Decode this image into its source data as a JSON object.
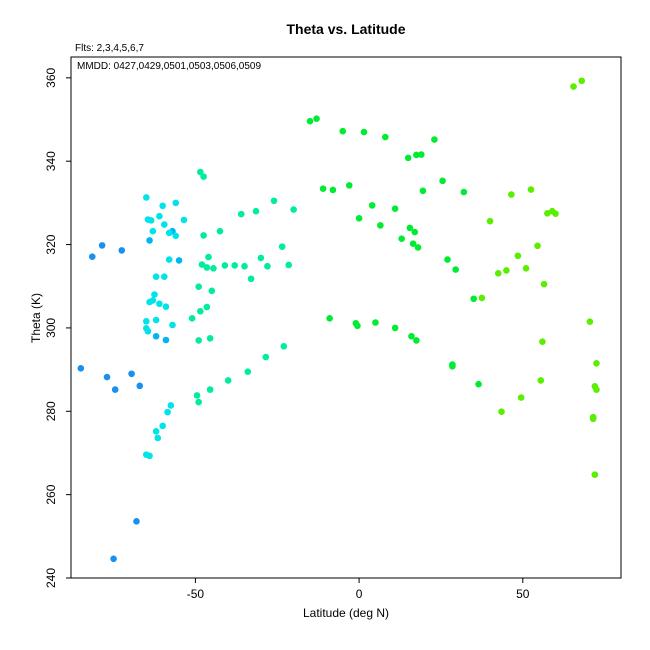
{
  "chart_data": {
    "type": "scatter",
    "title": "Theta vs. Latitude",
    "flts_note": "Flts: 2,3,4,5,6,7",
    "mmdd_note": "MMDD: 0427,0429,0501,0503,0506,0509",
    "xlabel": "Latitude (deg N)",
    "ylabel": "Theta (K)",
    "xlim": [
      -88,
      80
    ],
    "ylim": [
      240,
      365
    ],
    "xticks": [
      -50,
      0,
      50
    ],
    "yticks": [
      240,
      260,
      280,
      300,
      320,
      340,
      360
    ],
    "grid": false,
    "colors": {
      "flt2": "#1a90ee",
      "flt3": "#00b6f2",
      "flt4": "#00e3e8",
      "flt5": "#00ed9a",
      "flt6": "#00ec33",
      "flt7": "#5aee00"
    },
    "series": [
      {
        "group": "flt2",
        "points": [
          [
            -81.5,
            317.1
          ],
          [
            -78.5,
            319.8
          ],
          [
            -72.5,
            318.6
          ],
          [
            -85,
            290.3
          ],
          [
            -77,
            288.2
          ],
          [
            -74.5,
            285.2
          ],
          [
            -69.5,
            289.0
          ],
          [
            -67,
            286.1
          ],
          [
            -68,
            253.6
          ],
          [
            -75,
            244.6
          ]
        ]
      },
      {
        "group": "flt3",
        "points": [
          [
            -64,
            321.0
          ],
          [
            -57,
            323.2
          ],
          [
            -55,
            316.2
          ],
          [
            -62,
            298.0
          ],
          [
            -59,
            297.1
          ]
        ]
      },
      {
        "group": "flt4",
        "points": [
          [
            -65,
            331.3
          ],
          [
            -60,
            329.3
          ],
          [
            -56,
            330.0
          ],
          [
            -64.5,
            326.0
          ],
          [
            -63.5,
            325.8
          ],
          [
            -61,
            326.8
          ],
          [
            -59.5,
            324.8
          ],
          [
            -58,
            322.8
          ],
          [
            -56,
            322.1
          ],
          [
            -53.5,
            325.9
          ],
          [
            -63,
            323.2
          ],
          [
            -62,
            312.3
          ],
          [
            -59.5,
            312.3
          ],
          [
            -58,
            316.4
          ],
          [
            -62.5,
            308.0
          ],
          [
            -63,
            306.6
          ],
          [
            -64,
            306.2
          ],
          [
            -61,
            305.8
          ],
          [
            -59,
            305.1
          ],
          [
            -65,
            301.6
          ],
          [
            -62,
            301.9
          ],
          [
            -57,
            300.7
          ],
          [
            -65,
            299.9
          ],
          [
            -64.5,
            299.2
          ],
          [
            -57.5,
            281.4
          ],
          [
            -58.5,
            279.8
          ],
          [
            -60,
            276.5
          ],
          [
            -62,
            275.2
          ],
          [
            -61.5,
            273.6
          ],
          [
            -65,
            269.6
          ],
          [
            -64,
            269.3
          ]
        ]
      },
      {
        "group": "flt5",
        "points": [
          [
            -48.5,
            337.4
          ],
          [
            -47.5,
            336.3
          ],
          [
            -47.5,
            322.2
          ],
          [
            -42.5,
            323.2
          ],
          [
            -46,
            317.0
          ],
          [
            -48,
            315.2
          ],
          [
            -46.5,
            314.5
          ],
          [
            -44.5,
            314.3
          ],
          [
            -41,
            315.0
          ],
          [
            -38,
            315.0
          ],
          [
            -35,
            314.8
          ],
          [
            -33,
            311.8
          ],
          [
            -30,
            316.8
          ],
          [
            -28,
            314.8
          ],
          [
            -23.5,
            319.5
          ],
          [
            -21.5,
            315.1
          ],
          [
            -36,
            327.3
          ],
          [
            -31.5,
            328.0
          ],
          [
            -26,
            330.5
          ],
          [
            -20,
            328.4
          ],
          [
            -49,
            309.9
          ],
          [
            -45,
            308.9
          ],
          [
            -46.5,
            305.0
          ],
          [
            -48.5,
            304.0
          ],
          [
            -51,
            302.3
          ],
          [
            -49,
            297.0
          ],
          [
            -45.5,
            297.5
          ],
          [
            -49.5,
            283.8
          ],
          [
            -49,
            282.2
          ],
          [
            -45.5,
            285.2
          ],
          [
            -40,
            287.4
          ],
          [
            -34,
            289.5
          ],
          [
            -28.5,
            293.0
          ],
          [
            -23,
            295.6
          ]
        ]
      },
      {
        "group": "flt6",
        "points": [
          [
            -15,
            349.6
          ],
          [
            -13,
            350.2
          ],
          [
            -5,
            347.2
          ],
          [
            1.5,
            347.0
          ],
          [
            8,
            345.8
          ],
          [
            15,
            340.8
          ],
          [
            17.5,
            341.5
          ],
          [
            19,
            341.6
          ],
          [
            23,
            345.2
          ],
          [
            -11,
            333.4
          ],
          [
            -8,
            333.1
          ],
          [
            -3,
            334.2
          ],
          [
            4,
            329.4
          ],
          [
            11,
            328.6
          ],
          [
            19.5,
            332.9
          ],
          [
            25.5,
            335.3
          ],
          [
            0,
            326.3
          ],
          [
            6.5,
            324.6
          ],
          [
            13,
            321.4
          ],
          [
            15.5,
            324.0
          ],
          [
            17,
            323.0
          ],
          [
            16.5,
            320.2
          ],
          [
            18,
            319.3
          ],
          [
            27,
            316.4
          ],
          [
            29.5,
            314.0
          ],
          [
            -9,
            302.3
          ],
          [
            -1,
            301.1
          ],
          [
            -0.5,
            300.5
          ],
          [
            5,
            301.3
          ],
          [
            11,
            300.0
          ],
          [
            16,
            298.0
          ],
          [
            17.5,
            297.0
          ],
          [
            28.5,
            291.2
          ],
          [
            28.5,
            290.8
          ],
          [
            36.5,
            286.5
          ],
          [
            32,
            332.6
          ],
          [
            35,
            307.0
          ]
        ]
      },
      {
        "group": "flt7",
        "points": [
          [
            65.5,
            357.9
          ],
          [
            68,
            359.3
          ],
          [
            46.5,
            332.0
          ],
          [
            52.5,
            333.2
          ],
          [
            57.5,
            327.5
          ],
          [
            59,
            328.0
          ],
          [
            60,
            327.4
          ],
          [
            40,
            325.6
          ],
          [
            54.5,
            319.7
          ],
          [
            48.5,
            317.3
          ],
          [
            51,
            314.3
          ],
          [
            45,
            313.8
          ],
          [
            42.5,
            313.1
          ],
          [
            56.5,
            310.5
          ],
          [
            37.5,
            307.2
          ],
          [
            56,
            296.7
          ],
          [
            70.5,
            301.5
          ],
          [
            72.5,
            291.5
          ],
          [
            55.5,
            287.4
          ],
          [
            49.5,
            283.3
          ],
          [
            43.5,
            279.9
          ],
          [
            72,
            286.0
          ],
          [
            72.5,
            285.2
          ],
          [
            71.5,
            278.6
          ],
          [
            71.5,
            278.2
          ],
          [
            72,
            264.8
          ]
        ]
      }
    ]
  }
}
